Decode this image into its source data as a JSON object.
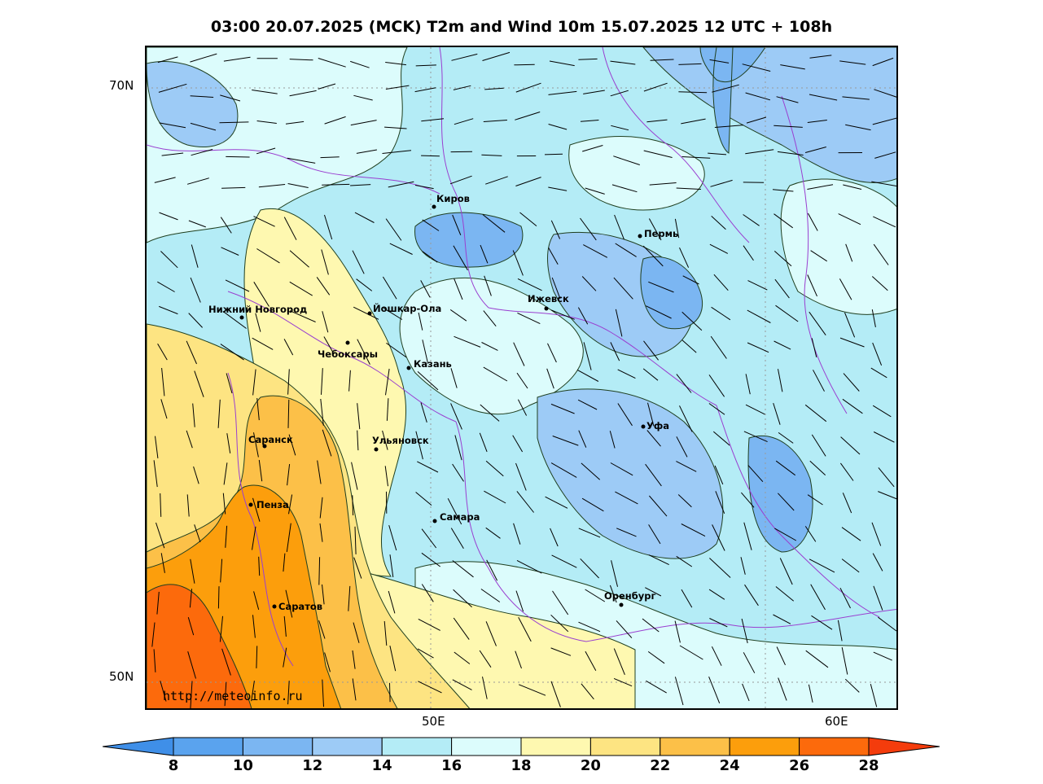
{
  "title": "03:00 20.07.2025 (MCK) T2m and Wind 10m 15.07.2025 12 UTC + 108h",
  "lat_labels": [
    "70N",
    "50N"
  ],
  "lon_labels": [
    "50E",
    "60E"
  ],
  "watermark": "http://meteoinfo.ru",
  "cities": [
    {
      "name": "Киров"
    },
    {
      "name": "Пермь"
    },
    {
      "name": "Нижний Новгород"
    },
    {
      "name": "Йошкар-Ола"
    },
    {
      "name": "Ижевск"
    },
    {
      "name": "Чебоксары"
    },
    {
      "name": "Казань"
    },
    {
      "name": "Саранск"
    },
    {
      "name": "Ульяновск"
    },
    {
      "name": "Уфа"
    },
    {
      "name": "Пенза"
    },
    {
      "name": "Самара"
    },
    {
      "name": "Оренбург"
    },
    {
      "name": "Саратов"
    }
  ],
  "colorbar": {
    "ticks": [
      "8",
      "10",
      "12",
      "14",
      "16",
      "18",
      "20",
      "22",
      "24",
      "26",
      "28"
    ],
    "colors": [
      "#3f8fe8",
      "#5aa3ee",
      "#7bb6f2",
      "#9dcbf6",
      "#b4ecf6",
      "#dcfcfc",
      "#fef8b0",
      "#fde482",
      "#fcc048",
      "#fc9e0c",
      "#fc6a0c",
      "#f43c0c"
    ]
  }
}
